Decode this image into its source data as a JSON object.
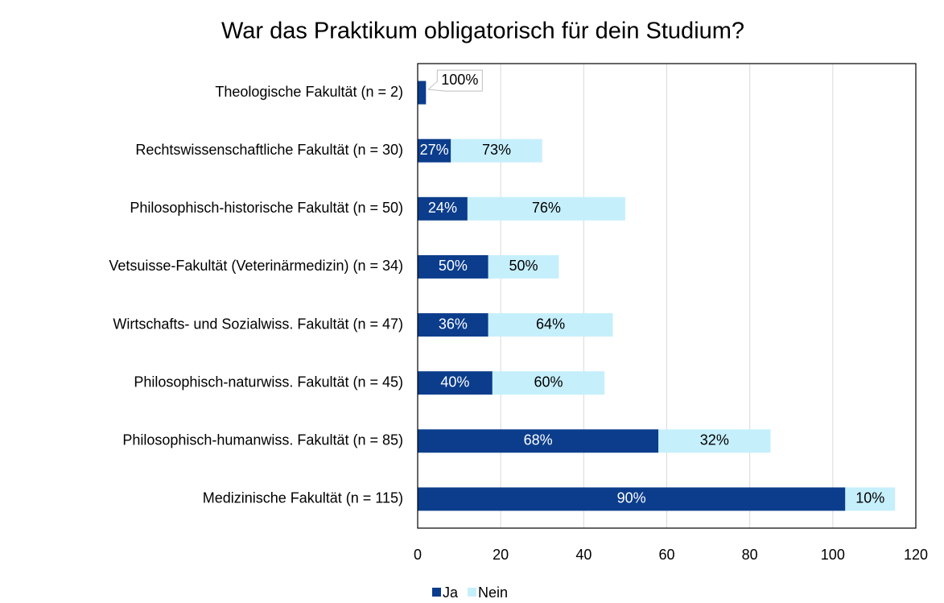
{
  "chart_data": {
    "type": "stacked-bar-horizontal",
    "title": "War das Praktikum obligatorisch für dein Studium?",
    "categories": [
      "Theologische Fakultät (n = 2)",
      "Rechtswissenschaftliche Fakultät (n = 30)",
      "Philosophisch-historische Fakultät (n = 50)",
      "Vetsuisse-Fakultät (Veterinärmedizin) (n = 34)",
      "Wirtschafts- und Sozialwiss. Fakultät (n = 47)",
      "Philosophisch-naturwiss. Fakultät (n = 45)",
      "Philosophisch-humanwiss. Fakultät (n = 85)",
      "Medizinische Fakultät (n = 115)"
    ],
    "series": [
      {
        "name": "Ja",
        "color": "#0b3d8c",
        "values": [
          2,
          8,
          12,
          17,
          17,
          18,
          58,
          103
        ],
        "value_labels": [
          "100%",
          "27%",
          "24%",
          "50%",
          "36%",
          "40%",
          "68%",
          "90%"
        ]
      },
      {
        "name": "Nein",
        "color": "#c6effc",
        "values": [
          0,
          22,
          38,
          17,
          30,
          27,
          27,
          12
        ],
        "value_labels": [
          null,
          "73%",
          "76%",
          "50%",
          "64%",
          "60%",
          "32%",
          "10%"
        ]
      }
    ],
    "xlim": [
      0,
      120
    ],
    "xticks": [
      0,
      20,
      40,
      60,
      80,
      100,
      120
    ],
    "grid": true,
    "legend": "bottom"
  }
}
